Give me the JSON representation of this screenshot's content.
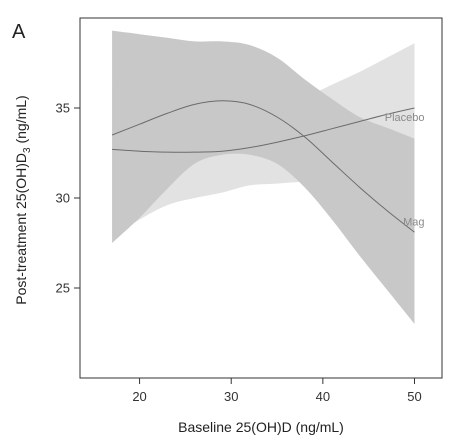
{
  "chart_data": {
    "type": "line",
    "panel_label": "A",
    "xlabel": "Baseline 25(OH)D (ng/mL)",
    "ylabel_main": "Post-treatment 25(OH)D",
    "ylabel_subscript": "3",
    "ylabel_unit": " (ng/mL)",
    "xlim": [
      13.5,
      53
    ],
    "ylim": [
      20,
      40
    ],
    "xticks": [
      "20",
      "30",
      "40",
      "50"
    ],
    "yticks": [
      "25",
      "30",
      "35"
    ],
    "grid": false,
    "colors": {
      "placebo_band": "#e2e2e2",
      "mag_band": "#c8c8c8",
      "line": "#6b6b6b",
      "axis": "#333333"
    },
    "x": [
      17,
      20,
      23,
      26,
      29,
      32,
      35,
      38,
      41,
      44,
      47,
      50
    ],
    "series": [
      {
        "name": "Placebo",
        "values": [
          32.7,
          32.6,
          32.55,
          32.55,
          32.6,
          32.8,
          33.1,
          33.45,
          33.85,
          34.25,
          34.65,
          35.0
        ],
        "lower": [
          27.8,
          28.8,
          29.6,
          30.0,
          30.3,
          30.7,
          30.8,
          30.9,
          30.9,
          30.7,
          30.7,
          30.9
        ],
        "upper": [
          36.4,
          36.0,
          35.6,
          35.3,
          35.2,
          35.2,
          35.3,
          35.6,
          36.3,
          37.0,
          37.8,
          38.6
        ]
      },
      {
        "name": "Mag",
        "values": [
          33.5,
          34.1,
          34.7,
          35.2,
          35.4,
          35.2,
          34.5,
          33.4,
          32.0,
          30.6,
          29.3,
          28.1
        ],
        "lower": [
          27.5,
          28.9,
          30.5,
          31.9,
          32.4,
          32.4,
          31.9,
          30.6,
          28.8,
          26.8,
          24.9,
          23.0
        ],
        "upper": [
          39.3,
          39.1,
          38.9,
          38.7,
          38.7,
          38.5,
          37.8,
          36.6,
          35.5,
          34.5,
          33.9,
          33.3
        ]
      }
    ]
  }
}
